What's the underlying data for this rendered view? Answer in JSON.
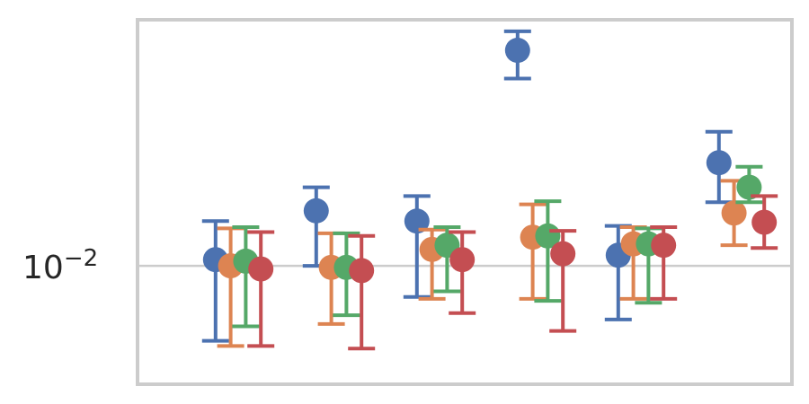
{
  "chart_data": {
    "type": "scatter",
    "title": "",
    "xlabel": "",
    "ylabel": "",
    "y_scale": "log",
    "ylim": [
      0.0047,
      0.048
    ],
    "grid": true,
    "legend": "none",
    "y_ticks": [
      {
        "value": 0.01,
        "base": "10",
        "exponent": "−2"
      }
    ],
    "x": [
      1,
      2,
      3,
      4,
      5,
      6
    ],
    "xlim": [
      0.0,
      6.5
    ],
    "offset": 0.15,
    "series": [
      {
        "color": "#4c72b0",
        "values": [
          0.0104,
          0.0142,
          0.0133,
          0.0395,
          0.0107,
          0.0193
        ],
        "lower": [
          0.0062,
          0.01,
          0.0082,
          0.033,
          0.0071,
          0.015
        ],
        "upper": [
          0.0133,
          0.0165,
          0.0156,
          0.0446,
          0.0129,
          0.0235
        ]
      },
      {
        "color": "#dd8452",
        "values": [
          0.01,
          0.0099,
          0.0111,
          0.012,
          0.0115,
          0.014
        ],
        "lower": [
          0.006,
          0.0069,
          0.0081,
          0.0081,
          0.0081,
          0.0114
        ],
        "upper": [
          0.0127,
          0.0123,
          0.0126,
          0.0148,
          0.0128,
          0.0172
        ]
      },
      {
        "color": "#55a868",
        "values": [
          0.0103,
          0.0099,
          0.0114,
          0.0121,
          0.0115,
          0.0165
        ],
        "lower": [
          0.0068,
          0.0073,
          0.0085,
          0.008,
          0.0079,
          0.015
        ],
        "upper": [
          0.0128,
          0.0123,
          0.0128,
          0.0151,
          0.0127,
          0.0188
        ]
      },
      {
        "color": "#c44e52",
        "values": [
          0.0098,
          0.0097,
          0.0104,
          0.0108,
          0.0114,
          0.0132
        ],
        "lower": [
          0.006,
          0.0059,
          0.0074,
          0.0066,
          0.0081,
          0.0112
        ],
        "upper": [
          0.0124,
          0.0121,
          0.0124,
          0.0125,
          0.0128,
          0.0156
        ]
      }
    ]
  }
}
